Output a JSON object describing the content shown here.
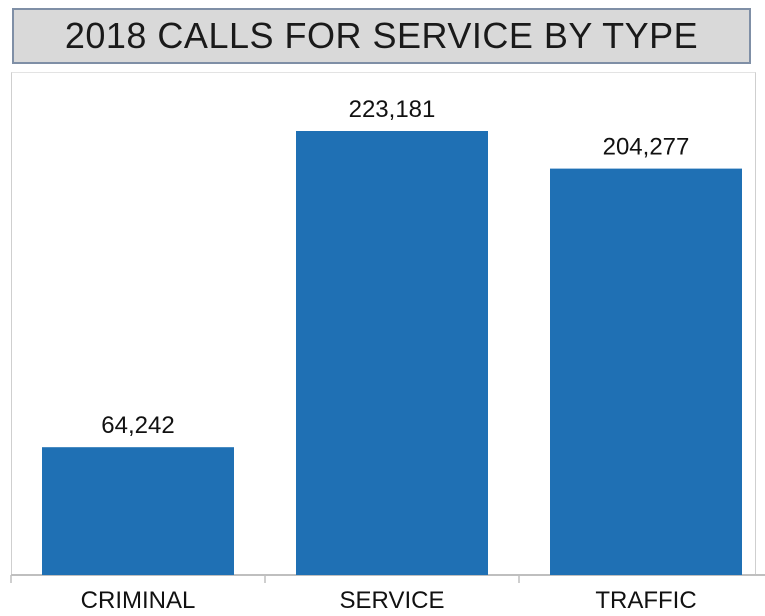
{
  "chart_data": {
    "type": "bar",
    "title": "2018 CALLS FOR SERVICE BY TYPE",
    "categories": [
      "CRIMINAL",
      "SERVICE",
      "TRAFFIC"
    ],
    "values": [
      64242,
      223181,
      204277
    ],
    "data_labels": [
      "64,242",
      "223,181",
      "204,277"
    ],
    "ylim": [
      0,
      250000
    ],
    "grid": false,
    "bar_color": "#1f70b4",
    "title_background": "#d9d9d9"
  }
}
